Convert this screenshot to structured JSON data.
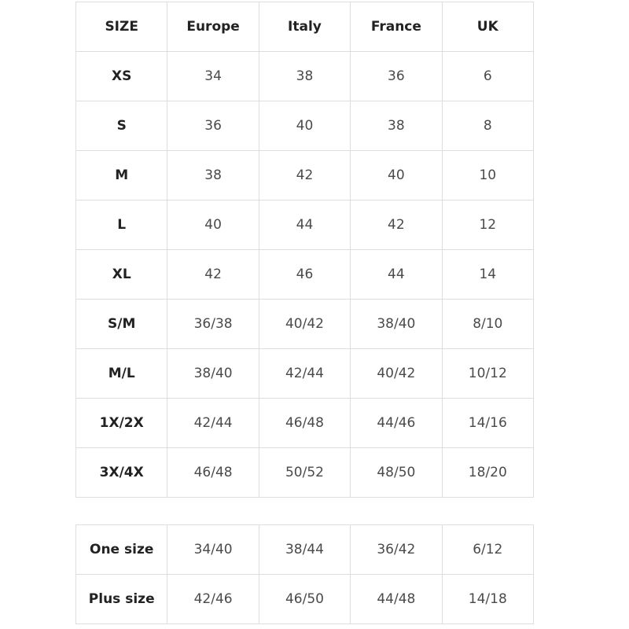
{
  "size_table": {
    "headers": [
      "SIZE",
      "Europe",
      "Italy",
      "France",
      "UK"
    ],
    "rows": [
      [
        "XS",
        "34",
        "38",
        "36",
        "6"
      ],
      [
        "S",
        "36",
        "40",
        "38",
        "8"
      ],
      [
        "M",
        "38",
        "42",
        "40",
        "10"
      ],
      [
        "L",
        "40",
        "44",
        "42",
        "12"
      ],
      [
        "XL",
        "42",
        "46",
        "44",
        "14"
      ],
      [
        "S/M",
        "36/38",
        "40/42",
        "38/40",
        "8/10"
      ],
      [
        "M/L",
        "38/40",
        "42/44",
        "40/42",
        "10/12"
      ],
      [
        "1X/2X",
        "42/44",
        "46/48",
        "44/46",
        "14/16"
      ],
      [
        "3X/4X",
        "46/48",
        "50/52",
        "48/50",
        "18/20"
      ]
    ]
  },
  "special_sizes_table": {
    "rows": [
      [
        "One size",
        "34/40",
        "38/44",
        "36/42",
        "6/12"
      ],
      [
        "Plus size",
        "42/46",
        "46/50",
        "44/48",
        "14/18"
      ]
    ]
  }
}
